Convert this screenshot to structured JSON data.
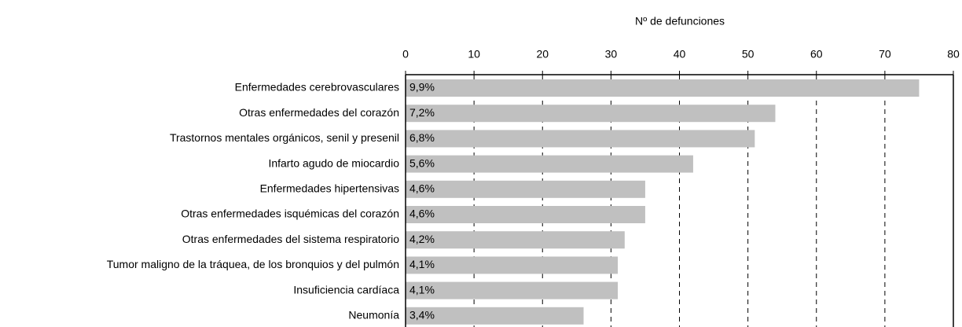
{
  "chart_data": {
    "type": "bar",
    "orientation": "horizontal",
    "x_axis_label": "Nº de defunciones",
    "categories": [
      "Enfermedades cerebrovasculares",
      "Otras enfermedades del corazón",
      "Trastornos mentales orgánicos, senil y presenil",
      "Infarto agudo de miocardio",
      "Enfermedades hipertensivas",
      "Otras enfermedades isquémicas del corazón",
      "Otras enfermedades del sistema respiratorio",
      "Tumor maligno de la tráquea, de los bronquios y del pulmón",
      "Insuficiencia cardíaca",
      "Neumonía"
    ],
    "values": [
      75,
      54,
      51,
      42,
      35,
      35,
      32,
      31,
      31,
      26
    ],
    "percent_labels": [
      "9,9%",
      "7,2%",
      "6,8%",
      "5,6%",
      "4,6%",
      "4,6%",
      "4,2%",
      "4,1%",
      "4,1%",
      "3,4%"
    ],
    "color": "#c0c0c0",
    "xlim": [
      0,
      80
    ],
    "xticks": [
      0,
      10,
      20,
      30,
      40,
      50,
      60,
      70,
      80
    ],
    "grid": true
  }
}
